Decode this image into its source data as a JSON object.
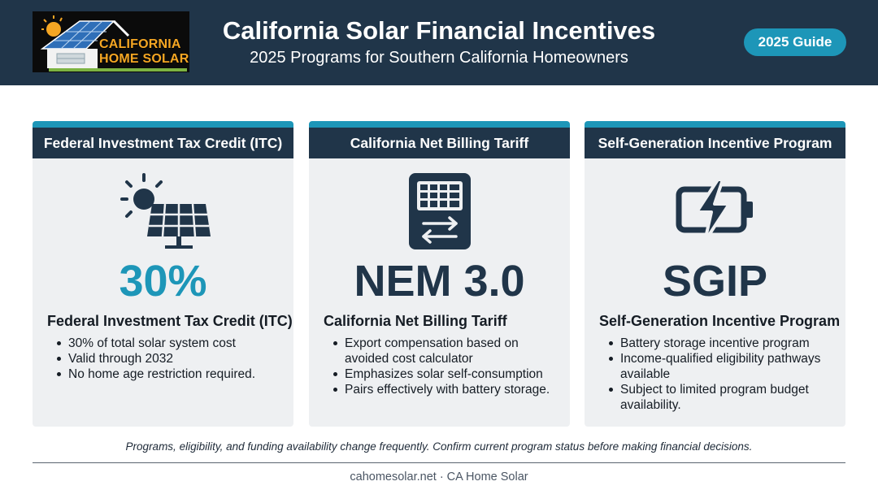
{
  "header": {
    "logo": {
      "line1": "CALIFORNIA",
      "line2": "HOME SOLAR"
    },
    "title": "California Solar Financial Incentives",
    "subtitle": "2025 Programs for Southern California Homeowners",
    "badge": "2025 Guide"
  },
  "colors": {
    "navy": "#203549",
    "teal": "#1d96b8",
    "card_bg": "#eef0f2",
    "logo_orange": "#f5a623",
    "logo_green": "#7cb342"
  },
  "cards": [
    {
      "header": "Federal Investment Tax Credit (ITC)",
      "icon": "sun-solar-panel-icon",
      "headline": "30%",
      "title": "Federal Investment Tax Credit (ITC)",
      "bullets": [
        "30% of total solar system cost",
        "Valid through 2032",
        "No home age restriction required."
      ]
    },
    {
      "header": "California Net Billing Tariff",
      "icon": "grid-exchange-meter-icon",
      "headline": "NEM 3.0",
      "title": "California Net Billing Tariff",
      "bullets": [
        "Export compensation based on avoided cost calculator",
        "Emphasizes solar self-consumption",
        "Pairs effectively with battery storage."
      ]
    },
    {
      "header": "Self-Generation Incentive Program",
      "icon": "battery-bolt-icon",
      "headline": "SGIP",
      "title": "Self-Generation Incentive Program",
      "bullets": [
        "Battery storage incentive program",
        "Income-qualified eligibility pathways available",
        "Subject to limited program budget availability."
      ]
    }
  ],
  "disclaimer": "Programs, eligibility, and funding availability change frequently. Confirm current program status before making financial decisions.",
  "footer": "cahomesolar.net · CA Home Solar"
}
